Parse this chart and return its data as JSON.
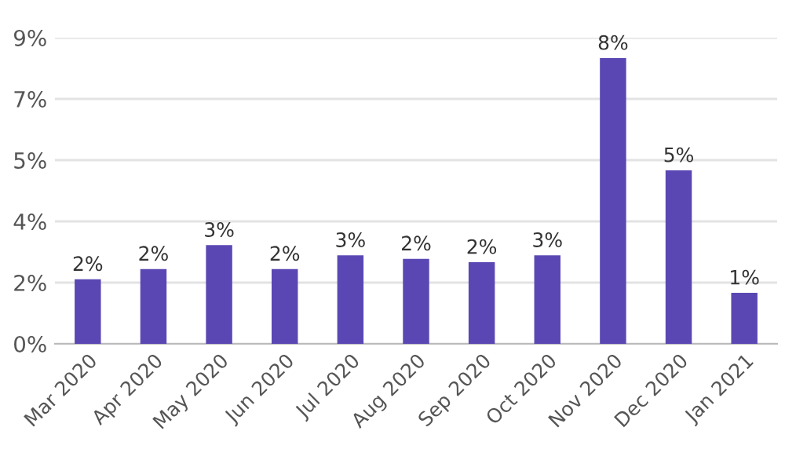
{
  "chart_data": {
    "type": "bar",
    "categories": [
      "Mar 2020",
      "Apr 2020",
      "May 2020",
      "Jun 2020",
      "Jul 2020",
      "Aug 2020",
      "Sep 2020",
      "Oct 2020",
      "Nov 2020",
      "Dec 2020",
      "Jan 2021"
    ],
    "values": [
      1.9,
      2.2,
      2.9,
      2.2,
      2.6,
      2.5,
      2.4,
      2.6,
      8.4,
      5.1,
      1.5
    ],
    "value_labels": [
      "2%",
      "2%",
      "3%",
      "2%",
      "3%",
      "2%",
      "2%",
      "3%",
      "8%",
      "5%",
      "1%"
    ],
    "color": "#5b47b3",
    "ylim": [
      0,
      9
    ],
    "yticks": [
      {
        "value": 0,
        "label": "0%"
      },
      {
        "value": 1.8,
        "label": "2%"
      },
      {
        "value": 3.6,
        "label": "4%"
      },
      {
        "value": 5.4,
        "label": "5%"
      },
      {
        "value": 7.2,
        "label": "7%"
      },
      {
        "value": 9,
        "label": "9%"
      }
    ],
    "grid": "y"
  }
}
